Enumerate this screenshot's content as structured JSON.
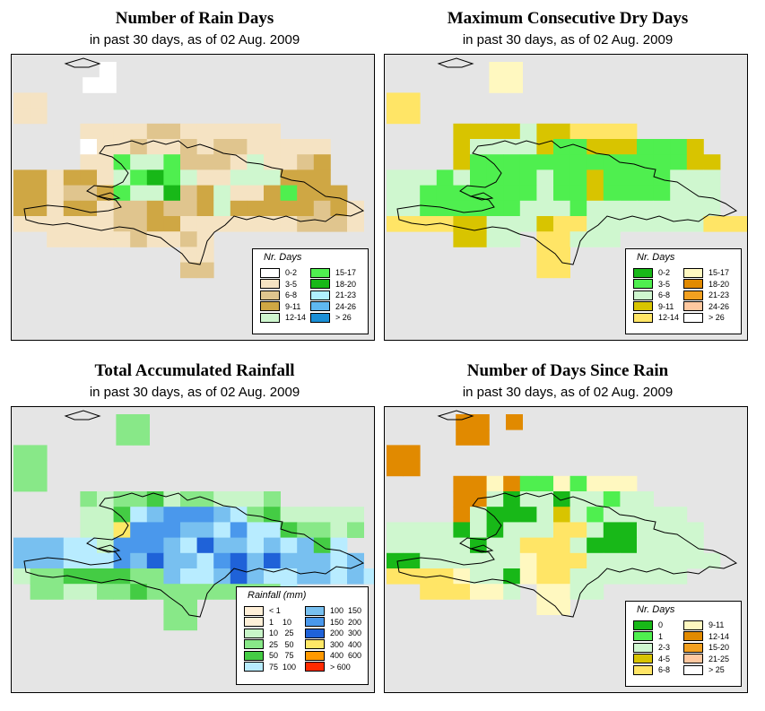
{
  "panels": [
    {
      "title": "Number of Rain Days",
      "subtitle": "in past 30 days, as of  02 Aug. 2009",
      "legend_title": "Nr. Days",
      "legend": [
        {
          "label": "0-2",
          "color": "#ffffff"
        },
        {
          "label": "3-5",
          "color": "#f5e3c3"
        },
        {
          "label": "6-8",
          "color": "#e0c58e"
        },
        {
          "label": "9-11",
          "color": "#cfa744"
        },
        {
          "label": "12-14",
          "color": "#cff7cf"
        },
        {
          "label": "15-17",
          "color": "#4fef4f"
        },
        {
          "label": "18-20",
          "color": "#18b818"
        },
        {
          "label": "21-23",
          "color": "#b0f0ff"
        },
        {
          "label": "24-26",
          "color": "#5fb8f0"
        },
        {
          "label": "> 26",
          "color": "#1a8fd6"
        }
      ]
    },
    {
      "title": "Maximum Consecutive Dry Days",
      "subtitle": "in past 30 days, as of  02 Aug. 2009",
      "legend_title": "Nr. Days",
      "legend": [
        {
          "label": "0-2",
          "color": "#18b818"
        },
        {
          "label": "3-5",
          "color": "#4fef4f"
        },
        {
          "label": "6-8",
          "color": "#cff7cf"
        },
        {
          "label": "9-11",
          "color": "#d8c400"
        },
        {
          "label": "12-14",
          "color": "#ffe566"
        },
        {
          "label": "15-17",
          "color": "#fff8c0"
        },
        {
          "label": "18-20",
          "color": "#e18a00"
        },
        {
          "label": "21-23",
          "color": "#f2a020"
        },
        {
          "label": "24-26",
          "color": "#ffc8a0"
        },
        {
          "label": "> 26",
          "color": "#ffffff"
        }
      ]
    },
    {
      "title": "Total Accumulated Rainfall",
      "subtitle": "in past 30 days, as of  02 Aug. 2009",
      "legend_title": "Rainfall (mm)",
      "legend": [
        {
          "label": "< 1",
          "color": "#fff0d8"
        },
        {
          "label": "1    10",
          "color": "#fff0d8"
        },
        {
          "label": "10   25",
          "color": "#c8f5c8"
        },
        {
          "label": "25   50",
          "color": "#88e888"
        },
        {
          "label": "50   75",
          "color": "#44cc44"
        },
        {
          "label": "75  100",
          "color": "#b8ecff"
        },
        {
          "label": "100  150",
          "color": "#78c0f0"
        },
        {
          "label": "150  200",
          "color": "#4a98ec"
        },
        {
          "label": "200  300",
          "color": "#1f62d8"
        },
        {
          "label": "300  400",
          "color": "#ffe866"
        },
        {
          "label": "400  600",
          "color": "#ff9900"
        },
        {
          "label": "> 600",
          "color": "#ff2a00"
        }
      ]
    },
    {
      "title": "Number of Days Since Rain",
      "subtitle": "in past 30 days, as of  02 Aug. 2009",
      "legend_title": "Nr. Days",
      "legend": [
        {
          "label": "0",
          "color": "#18b818"
        },
        {
          "label": "1",
          "color": "#4fef4f"
        },
        {
          "label": "2-3",
          "color": "#cff7cf"
        },
        {
          "label": "4-5",
          "color": "#d8c400"
        },
        {
          "label": "6-8",
          "color": "#ffe566"
        },
        {
          "label": "9-11",
          "color": "#fff8c0"
        },
        {
          "label": "12-14",
          "color": "#e18a00"
        },
        {
          "label": "15-20",
          "color": "#f2a020"
        },
        {
          "label": "21-25",
          "color": "#ffc8a0"
        },
        {
          "label": "> 25",
          "color": "#ffffff"
        }
      ]
    }
  ]
}
